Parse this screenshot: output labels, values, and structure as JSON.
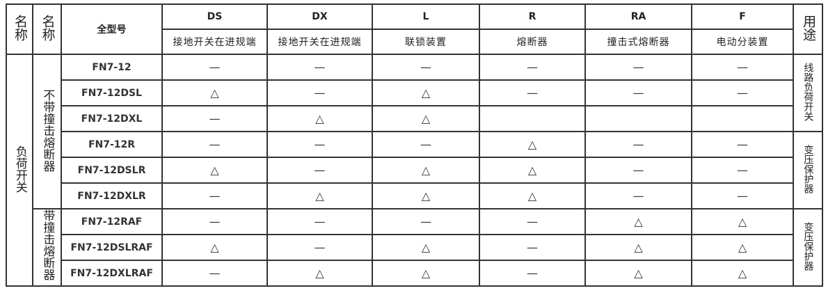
{
  "header": {
    "name1": "名称",
    "name2": "名称",
    "model": "全型号",
    "usage": "用途",
    "columns": [
      {
        "code": "DS",
        "desc": "接地开关在进规端"
      },
      {
        "code": "DX",
        "desc": "接地开关在进规端"
      },
      {
        "code": "L",
        "desc": "联锁装置"
      },
      {
        "code": "R",
        "desc": "熔断器"
      },
      {
        "code": "RA",
        "desc": "撞击式熔断器"
      },
      {
        "code": "F",
        "desc": "电动分装置"
      }
    ]
  },
  "category": "负荷开关",
  "groups": [
    {
      "label": "不带撞击熔断器"
    },
    {
      "label": "带撞击熔断器"
    }
  ],
  "usages": [
    "线路负荷开关",
    "变压保护器",
    "变压保护器"
  ],
  "rows": [
    {
      "model": "FN7-12",
      "cells": [
        "—",
        "—",
        "—",
        "—",
        "—",
        "—"
      ]
    },
    {
      "model": "FN7-12DSL",
      "cells": [
        "△",
        "—",
        "△",
        "—",
        "—",
        "—"
      ]
    },
    {
      "model": "FN7-12DXL",
      "cells": [
        "—",
        "△",
        "△",
        "",
        "",
        ""
      ]
    },
    {
      "model": "FN7-12R",
      "cells": [
        "—",
        "—",
        "—",
        "△",
        "—",
        "—"
      ]
    },
    {
      "model": "FN7-12DSLR",
      "cells": [
        "△",
        "—",
        "△",
        "△",
        "—",
        "—"
      ]
    },
    {
      "model": "FN7-12DXLR",
      "cells": [
        "—",
        "△",
        "△",
        "△",
        "—",
        "—"
      ]
    },
    {
      "model": "FN7-12RAF",
      "cells": [
        "—",
        "—",
        "—",
        "—",
        "△",
        "△"
      ]
    },
    {
      "model": "FN7-12DSLRAF",
      "cells": [
        "△",
        "—",
        "△",
        "—",
        "△",
        "△"
      ]
    },
    {
      "model": "FN7-12DXLRAF",
      "cells": [
        "—",
        "△",
        "△",
        "—",
        "△",
        "△"
      ]
    }
  ]
}
